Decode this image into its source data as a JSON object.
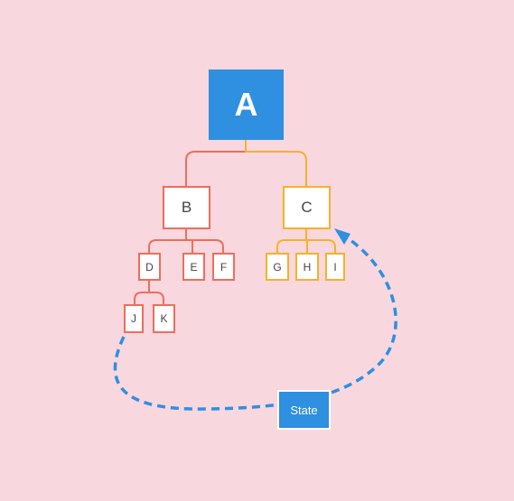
{
  "colors": {
    "background": "#f8d7df",
    "root_fill": "#2f8fe0",
    "branch_b": "#ee6e5b",
    "branch_c": "#f5b22b",
    "arrow": "#2f8fe0"
  },
  "tree": {
    "root": "A",
    "b": {
      "label": "B",
      "children": [
        "D",
        "E",
        "F"
      ],
      "d_children": [
        "J",
        "K"
      ]
    },
    "c": {
      "label": "C",
      "children": [
        "G",
        "H",
        "I"
      ]
    }
  },
  "state_label": "State"
}
